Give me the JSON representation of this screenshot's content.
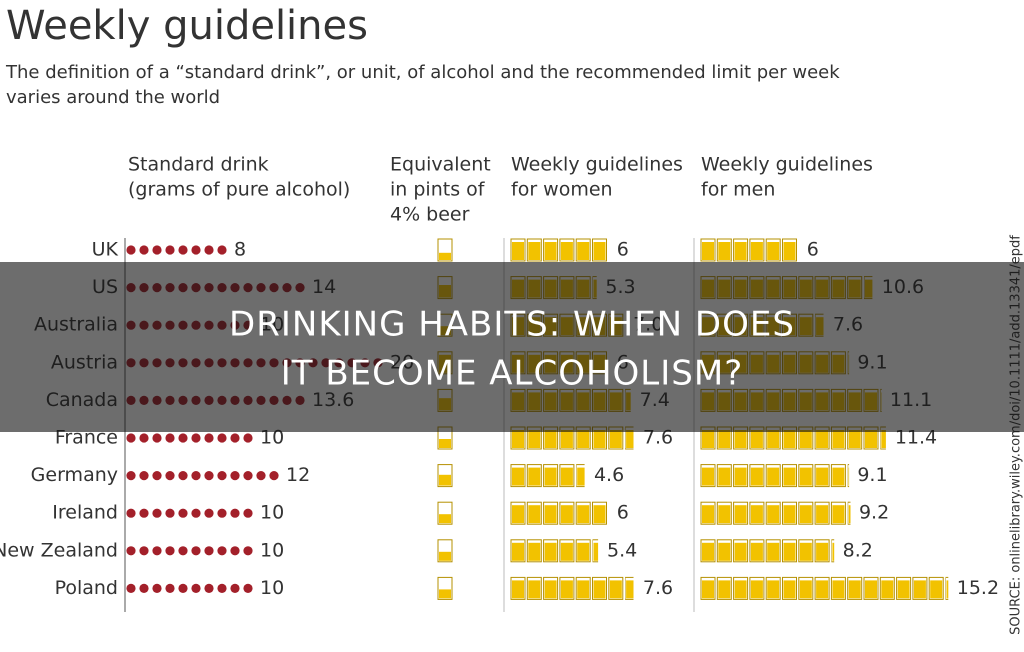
{
  "header": {
    "title": "Weekly guidelines",
    "subtitle_lines": [
      "The definition of a “standard drink”, or unit, of alcohol and the recommended limit per week",
      "varies around the world"
    ]
  },
  "pint_header_lines": [
    "Equivalent",
    "in pints of",
    "4% beer"
  ],
  "source": "SOURCE: onlinelibrary.wiley.com/doi/10.1111/add.13341/epdf",
  "banner_lines": [
    "DRINKING HABITS: WHEN DOES",
    "IT BECOME ALCOHOLISM?"
  ],
  "chart_data": {
    "type": "pictogram",
    "categories": [
      "UK",
      "US",
      "Australia",
      "Austria",
      "Canada",
      "France",
      "Germany",
      "Ireland",
      "New Zealand",
      "Poland"
    ],
    "series": [
      {
        "name_lines": [
          "Standard drink",
          "(grams of pure alcohol)"
        ],
        "color": "#a3202a",
        "values": [
          8,
          14,
          10,
          20,
          13.6,
          10,
          12,
          10,
          10,
          10
        ]
      },
      {
        "name_lines": [
          "Weekly guidelines",
          "for women"
        ],
        "color": "#f2c200",
        "values": [
          6,
          5.3,
          7,
          6,
          7.4,
          7.6,
          4.6,
          6,
          5.4,
          7.6
        ],
        "value_labels": [
          "6",
          "5.3",
          "7.0",
          "6",
          "7.4",
          "7.6",
          "4.6",
          "6",
          "5.4",
          "7.6"
        ]
      },
      {
        "name_lines": [
          "Weekly guidelines",
          "for men"
        ],
        "color": "#f2c200",
        "values": [
          6,
          10.6,
          7.6,
          9.1,
          11.1,
          11.4,
          9.1,
          9.2,
          8.2,
          15.2
        ]
      }
    ]
  }
}
